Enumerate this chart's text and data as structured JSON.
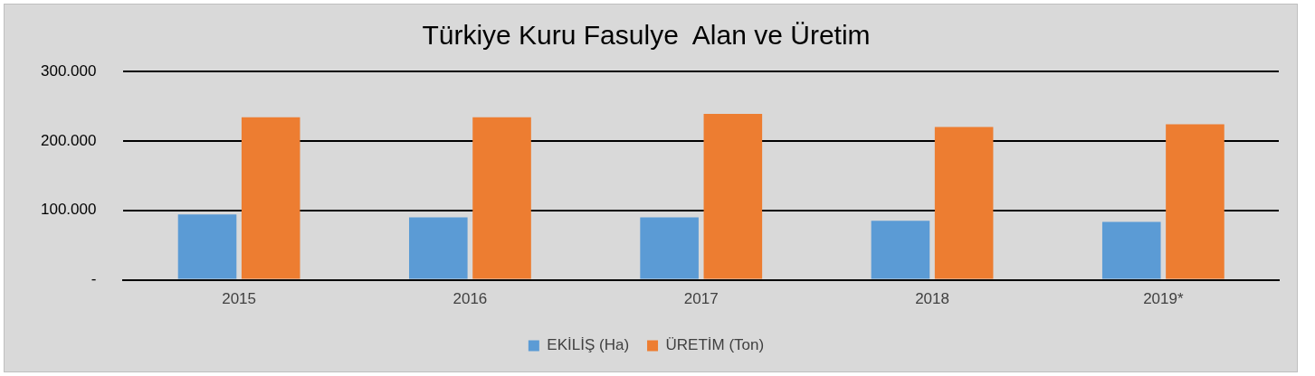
{
  "chart_data": {
    "type": "bar",
    "title": "Türkiye Kuru Fasulye  Alan ve Üretim",
    "categories": [
      "2015",
      "2016",
      "2017",
      "2018",
      "2019*"
    ],
    "series": [
      {
        "name": "EKİLİŞ (Ha)",
        "color": "#5b9bd5",
        "values": [
          94000,
          90000,
          90000,
          85000,
          83500
        ]
      },
      {
        "name": "ÜRETİM (Ton)",
        "color": "#ed7d31",
        "values": [
          234000,
          234000,
          239000,
          220000,
          224000
        ]
      }
    ],
    "ylim": [
      0,
      300000
    ],
    "yticks": [
      {
        "value": 0,
        "label": "-"
      },
      {
        "value": 100000,
        "label": "100.000"
      },
      {
        "value": 200000,
        "label": "200.000"
      },
      {
        "value": 300000,
        "label": "300.000"
      }
    ],
    "grid": "y",
    "legend": "bottom"
  }
}
